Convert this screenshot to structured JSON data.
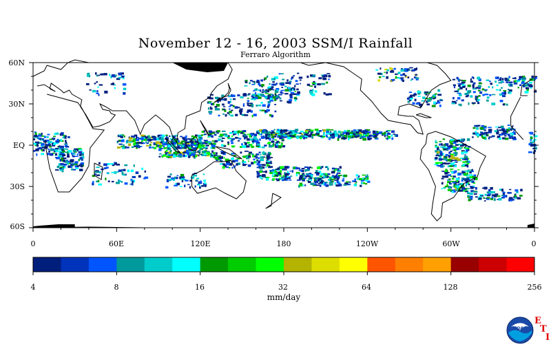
{
  "title": "November 12 - 16, 2003 SSM/I Rainfall",
  "subtitle": "Ferraro Algorithm",
  "map": {
    "lat_labels": [
      "60N",
      "30N",
      "EQ",
      "30S",
      "60S"
    ],
    "lon_labels": [
      "0",
      "60E",
      "120E",
      "180",
      "120W",
      "60W",
      "0"
    ],
    "background": "#ffffff",
    "coast_color": "#000000"
  },
  "colorbar": {
    "colors": [
      "#001e7c",
      "#0033bb",
      "#0055ff",
      "#00999c",
      "#00cccc",
      "#00ffff",
      "#009900",
      "#00cc00",
      "#00ff00",
      "#b3b300",
      "#dddd00",
      "#ffff00",
      "#ff5500",
      "#ff7f00",
      "#ffa000",
      "#990000",
      "#cc0000",
      "#ff0000"
    ],
    "tick_labels": [
      "4",
      "8",
      "16",
      "32",
      "64",
      "128",
      "256"
    ],
    "units": "mm/day"
  },
  "logo": {
    "name": "NOAA",
    "letters": [
      "E",
      "T",
      "I"
    ]
  }
}
